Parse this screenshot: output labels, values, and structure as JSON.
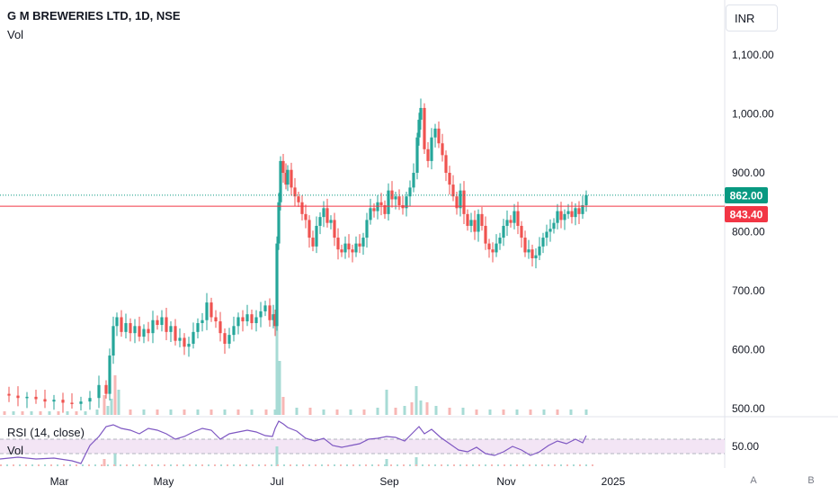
{
  "header": {
    "title": "G M BREWERIES LTD, 1D, NSE",
    "volume_label": "Vol"
  },
  "currency": {
    "label": "INR"
  },
  "badges": {
    "last_price": "862.00",
    "ref_price": "843.40",
    "rsi_value": "50.00"
  },
  "rsi": {
    "label": "RSI (14, close)",
    "volume_label": "Vol"
  },
  "corner_buttons": {
    "auto": "A",
    "b": "B"
  },
  "colors": {
    "up": "#26a69a",
    "down": "#ef5350",
    "rsi_line": "#7e57c2",
    "rsi_band": "#f3e5f5",
    "ref_line": "#f23645",
    "last_line": "#089981",
    "vol_up": "#a7dbd5",
    "vol_down": "#f7b7b5"
  },
  "chart_data": {
    "type": "candlestick",
    "title": "G M BREWERIES LTD, 1D, NSE",
    "ylim": [
      500,
      1100
    ],
    "y_ticks": [
      "1,100.00",
      "1,000.00",
      "900.00",
      "800.00",
      "700.00",
      "600.00",
      "500.00"
    ],
    "x_ticks": [
      "Mar",
      "May",
      "Jul",
      "Sep",
      "Nov",
      "2025"
    ],
    "last_price": 862.0,
    "reference_price": 843.4,
    "rsi_ticks": [
      "50.00"
    ],
    "close_path": [
      [
        0,
        525
      ],
      [
        10,
        522
      ],
      [
        20,
        518
      ],
      [
        30,
        520
      ],
      [
        40,
        516
      ],
      [
        50,
        512
      ],
      [
        60,
        515
      ],
      [
        70,
        510
      ],
      [
        80,
        508
      ],
      [
        90,
        512
      ],
      [
        100,
        518
      ],
      [
        110,
        540
      ],
      [
        118,
        525
      ],
      [
        122,
        590
      ],
      [
        126,
        640
      ],
      [
        130,
        655
      ],
      [
        135,
        630
      ],
      [
        140,
        645
      ],
      [
        145,
        628
      ],
      [
        150,
        640
      ],
      [
        155,
        622
      ],
      [
        160,
        635
      ],
      [
        165,
        628
      ],
      [
        170,
        650
      ],
      [
        175,
        642
      ],
      [
        180,
        655
      ],
      [
        185,
        630
      ],
      [
        190,
        640
      ],
      [
        195,
        615
      ],
      [
        200,
        620
      ],
      [
        205,
        605
      ],
      [
        210,
        610
      ],
      [
        215,
        630
      ],
      [
        220,
        645
      ],
      [
        225,
        650
      ],
      [
        230,
        680
      ],
      [
        235,
        655
      ],
      [
        240,
        648
      ],
      [
        245,
        628
      ],
      [
        250,
        610
      ],
      [
        255,
        625
      ],
      [
        260,
        640
      ],
      [
        265,
        655
      ],
      [
        270,
        648
      ],
      [
        275,
        660
      ],
      [
        280,
        645
      ],
      [
        285,
        655
      ],
      [
        290,
        665
      ],
      [
        295,
        675
      ],
      [
        300,
        650
      ],
      [
        304,
        660
      ],
      [
        306,
        640
      ],
      [
        308,
        780
      ],
      [
        310,
        850
      ],
      [
        312,
        920
      ],
      [
        315,
        900
      ],
      [
        318,
        880
      ],
      [
        320,
        905
      ],
      [
        324,
        875
      ],
      [
        328,
        860
      ],
      [
        332,
        850
      ],
      [
        336,
        830
      ],
      [
        340,
        820
      ],
      [
        344,
        790
      ],
      [
        348,
        775
      ],
      [
        352,
        810
      ],
      [
        356,
        825
      ],
      [
        360,
        840
      ],
      [
        364,
        815
      ],
      [
        368,
        820
      ],
      [
        372,
        790
      ],
      [
        376,
        770
      ],
      [
        380,
        765
      ],
      [
        384,
        780
      ],
      [
        388,
        770
      ],
      [
        392,
        765
      ],
      [
        396,
        780
      ],
      [
        400,
        775
      ],
      [
        404,
        790
      ],
      [
        408,
        820
      ],
      [
        412,
        840
      ],
      [
        416,
        835
      ],
      [
        420,
        850
      ],
      [
        424,
        845
      ],
      [
        428,
        830
      ],
      [
        432,
        870
      ],
      [
        436,
        855
      ],
      [
        440,
        860
      ],
      [
        444,
        845
      ],
      [
        448,
        840
      ],
      [
        452,
        860
      ],
      [
        456,
        875
      ],
      [
        460,
        900
      ],
      [
        464,
        960
      ],
      [
        466,
        990
      ],
      [
        468,
        1010
      ],
      [
        472,
        940
      ],
      [
        476,
        920
      ],
      [
        480,
        960
      ],
      [
        484,
        975
      ],
      [
        488,
        950
      ],
      [
        492,
        930
      ],
      [
        496,
        900
      ],
      [
        500,
        880
      ],
      [
        504,
        860
      ],
      [
        508,
        840
      ],
      [
        512,
        870
      ],
      [
        516,
        830
      ],
      [
        520,
        810
      ],
      [
        524,
        820
      ],
      [
        528,
        800
      ],
      [
        532,
        830
      ],
      [
        536,
        810
      ],
      [
        540,
        780
      ],
      [
        544,
        770
      ],
      [
        548,
        765
      ],
      [
        552,
        780
      ],
      [
        556,
        790
      ],
      [
        560,
        810
      ],
      [
        564,
        820
      ],
      [
        568,
        815
      ],
      [
        572,
        835
      ],
      [
        576,
        810
      ],
      [
        580,
        790
      ],
      [
        584,
        765
      ],
      [
        588,
        770
      ],
      [
        592,
        755
      ],
      [
        596,
        760
      ],
      [
        600,
        775
      ],
      [
        604,
        790
      ],
      [
        608,
        800
      ],
      [
        612,
        805
      ],
      [
        616,
        815
      ],
      [
        620,
        835
      ],
      [
        624,
        820
      ],
      [
        628,
        830
      ],
      [
        632,
        835
      ],
      [
        636,
        825
      ],
      [
        640,
        840
      ],
      [
        644,
        830
      ],
      [
        648,
        845
      ],
      [
        652,
        862
      ]
    ],
    "rsi_path": [
      [
        0,
        510
      ],
      [
        20,
        508
      ],
      [
        40,
        510
      ],
      [
        60,
        509
      ],
      [
        80,
        512
      ],
      [
        90,
        515
      ],
      [
        100,
        495
      ],
      [
        110,
        485
      ],
      [
        118,
        474
      ],
      [
        126,
        472
      ],
      [
        135,
        476
      ],
      [
        145,
        478
      ],
      [
        155,
        482
      ],
      [
        165,
        476
      ],
      [
        175,
        478
      ],
      [
        185,
        482
      ],
      [
        195,
        488
      ],
      [
        205,
        485
      ],
      [
        215,
        480
      ],
      [
        225,
        476
      ],
      [
        235,
        478
      ],
      [
        245,
        488
      ],
      [
        255,
        482
      ],
      [
        265,
        480
      ],
      [
        275,
        478
      ],
      [
        285,
        480
      ],
      [
        295,
        484
      ],
      [
        303,
        485
      ],
      [
        306,
        476
      ],
      [
        310,
        468
      ],
      [
        315,
        471
      ],
      [
        320,
        475
      ],
      [
        330,
        479
      ],
      [
        340,
        487
      ],
      [
        350,
        490
      ],
      [
        360,
        487
      ],
      [
        370,
        495
      ],
      [
        380,
        497
      ],
      [
        390,
        495
      ],
      [
        400,
        493
      ],
      [
        410,
        488
      ],
      [
        420,
        487
      ],
      [
        430,
        485
      ],
      [
        440,
        486
      ],
      [
        450,
        490
      ],
      [
        460,
        480
      ],
      [
        466,
        474
      ],
      [
        472,
        482
      ],
      [
        480,
        477
      ],
      [
        490,
        486
      ],
      [
        500,
        493
      ],
      [
        510,
        500
      ],
      [
        520,
        502
      ],
      [
        530,
        497
      ],
      [
        540,
        504
      ],
      [
        550,
        506
      ],
      [
        560,
        502
      ],
      [
        570,
        496
      ],
      [
        580,
        500
      ],
      [
        590,
        506
      ],
      [
        600,
        502
      ],
      [
        610,
        495
      ],
      [
        620,
        490
      ],
      [
        630,
        493
      ],
      [
        640,
        488
      ],
      [
        648,
        492
      ],
      [
        652,
        484
      ]
    ],
    "volume": [
      [
        5,
        4,
        0
      ],
      [
        15,
        4,
        1
      ],
      [
        25,
        4,
        0
      ],
      [
        35,
        4,
        1
      ],
      [
        45,
        4,
        0
      ],
      [
        55,
        4,
        1
      ],
      [
        65,
        4,
        0
      ],
      [
        75,
        4,
        1
      ],
      [
        85,
        4,
        0
      ],
      [
        95,
        4,
        1
      ],
      [
        108,
        6,
        1
      ],
      [
        116,
        22,
        0
      ],
      [
        120,
        10,
        1
      ],
      [
        124,
        18,
        1
      ],
      [
        128,
        44,
        0
      ],
      [
        132,
        28,
        1
      ],
      [
        145,
        6,
        0
      ],
      [
        160,
        6,
        1
      ],
      [
        175,
        6,
        0
      ],
      [
        190,
        6,
        1
      ],
      [
        205,
        6,
        0
      ],
      [
        220,
        6,
        1
      ],
      [
        235,
        6,
        0
      ],
      [
        250,
        6,
        1
      ],
      [
        265,
        6,
        0
      ],
      [
        280,
        6,
        1
      ],
      [
        296,
        6,
        0
      ],
      [
        306,
        6,
        1
      ],
      [
        308,
        110,
        1
      ],
      [
        311,
        60,
        1
      ],
      [
        315,
        20,
        0
      ],
      [
        330,
        8,
        1
      ],
      [
        345,
        8,
        0
      ],
      [
        360,
        6,
        1
      ],
      [
        375,
        6,
        0
      ],
      [
        390,
        6,
        1
      ],
      [
        405,
        6,
        0
      ],
      [
        420,
        8,
        1
      ],
      [
        430,
        28,
        1
      ],
      [
        440,
        8,
        0
      ],
      [
        450,
        10,
        1
      ],
      [
        458,
        14,
        0
      ],
      [
        463,
        32,
        1
      ],
      [
        468,
        16,
        1
      ],
      [
        475,
        14,
        0
      ],
      [
        485,
        10,
        1
      ],
      [
        500,
        8,
        0
      ],
      [
        515,
        8,
        1
      ],
      [
        530,
        6,
        0
      ],
      [
        545,
        6,
        1
      ],
      [
        560,
        6,
        0
      ],
      [
        575,
        6,
        1
      ],
      [
        590,
        6,
        0
      ],
      [
        605,
        6,
        1
      ],
      [
        620,
        6,
        0
      ],
      [
        635,
        6,
        1
      ],
      [
        652,
        6,
        1
      ]
    ],
    "lower_volume": [
      [
        116,
        8,
        0
      ],
      [
        128,
        14,
        1
      ],
      [
        308,
        22,
        1
      ],
      [
        430,
        8,
        1
      ],
      [
        463,
        10,
        1
      ]
    ]
  }
}
